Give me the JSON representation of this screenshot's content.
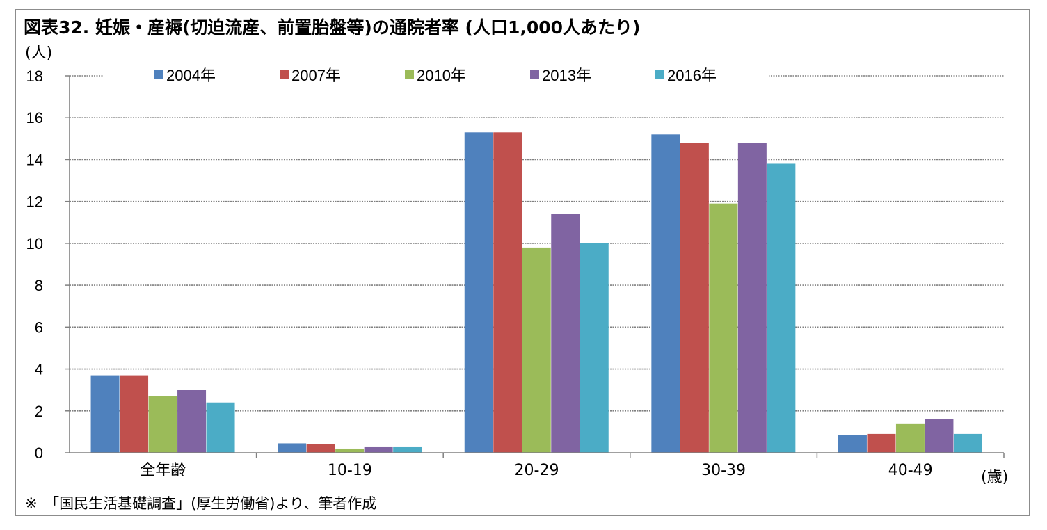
{
  "title": "図表32. 妊娠・産褥(切迫流産、前置胎盤等)の通院者率 (人口1,000人あたり)",
  "y_unit": "(人)",
  "x_unit": "(歳)",
  "note": "※　「国民生活基礎調査」(厚生労働省)より、筆者作成",
  "colors": {
    "2004年": "#4f81bd",
    "2007年": "#c0504d",
    "2010年": "#9bbb59",
    "2013年": "#8064a2",
    "2016年": "#4bacc6",
    "frame": "#8c8c8c",
    "grid": "#808080"
  },
  "chart_data": {
    "type": "bar",
    "categories": [
      "全年齢",
      "10-19",
      "20-29",
      "30-39",
      "40-49"
    ],
    "series": [
      {
        "name": "2004年",
        "values": [
          3.7,
          0.45,
          15.3,
          15.2,
          0.85
        ]
      },
      {
        "name": "2007年",
        "values": [
          3.7,
          0.4,
          15.3,
          14.8,
          0.9
        ]
      },
      {
        "name": "2010年",
        "values": [
          2.7,
          0.2,
          9.8,
          11.9,
          1.4
        ]
      },
      {
        "name": "2013年",
        "values": [
          3.0,
          0.3,
          11.4,
          14.8,
          1.6
        ]
      },
      {
        "name": "2016年",
        "values": [
          2.4,
          0.3,
          10.0,
          13.8,
          0.9
        ]
      }
    ],
    "ylim": [
      0,
      18
    ],
    "yticks": [
      "0",
      "2",
      "4",
      "6",
      "8",
      "10",
      "12",
      "14",
      "16",
      "18"
    ],
    "grid": "dotted horizontal",
    "legend": "top"
  }
}
